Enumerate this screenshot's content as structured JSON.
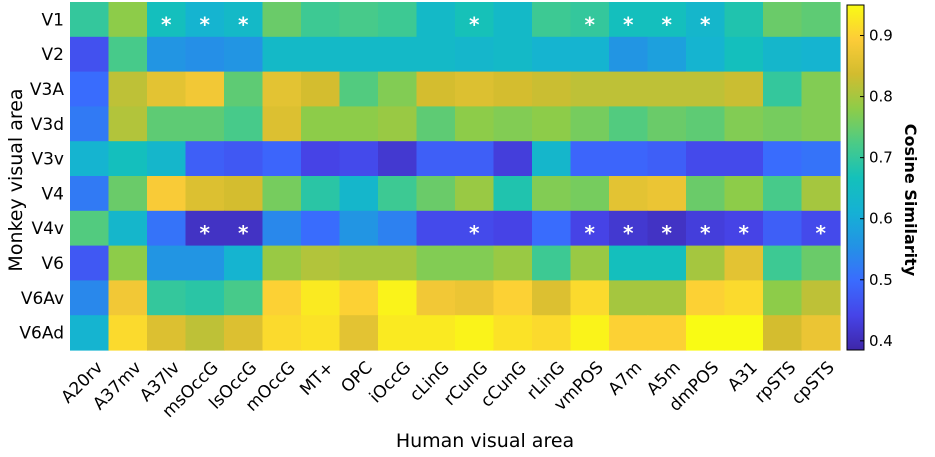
{
  "chart_data": {
    "type": "heatmap",
    "title": "",
    "xlabel": "Human visual area",
    "ylabel": "Monkey visual area",
    "colorbar_label": "Cosine Similarity",
    "colorbar_range": [
      0.385,
      0.95
    ],
    "colorbar_ticks": [
      "0.4",
      "0.5",
      "0.6",
      "0.7",
      "0.8",
      "0.9"
    ],
    "colorbar_tick_values": [
      0.4,
      0.5,
      0.6,
      0.7,
      0.8,
      0.9
    ],
    "x_categories": [
      "A20rv",
      "A37mv",
      "A37lv",
      "msOccG",
      "lsOccG",
      "mOccG",
      "MT+",
      "OPC",
      "iOccG",
      "cLinG",
      "rCunG",
      "cCunG",
      "rLinG",
      "vmPOS",
      "A7m",
      "A5m",
      "dmPOS",
      "A31",
      "rpSTS",
      "cpSTS"
    ],
    "y_categories": [
      "V1",
      "V2",
      "V3A",
      "V3d",
      "V3v",
      "V4",
      "V4v",
      "V6",
      "V6Av",
      "V6Ad"
    ],
    "values": [
      [
        0.7,
        0.78,
        0.66,
        0.62,
        0.64,
        0.75,
        0.71,
        0.72,
        0.71,
        0.64,
        0.67,
        0.64,
        0.71,
        0.7,
        0.66,
        0.66,
        0.63,
        0.68,
        0.75,
        0.74
      ],
      [
        0.46,
        0.72,
        0.56,
        0.55,
        0.56,
        0.64,
        0.64,
        0.64,
        0.64,
        0.64,
        0.63,
        0.64,
        0.62,
        0.62,
        0.56,
        0.58,
        0.62,
        0.66,
        0.63,
        0.62
      ],
      [
        0.5,
        0.82,
        0.86,
        0.88,
        0.74,
        0.86,
        0.84,
        0.73,
        0.77,
        0.84,
        0.85,
        0.84,
        0.83,
        0.82,
        0.82,
        0.82,
        0.82,
        0.83,
        0.7,
        0.77
      ],
      [
        0.52,
        0.81,
        0.74,
        0.74,
        0.72,
        0.85,
        0.78,
        0.78,
        0.79,
        0.74,
        0.78,
        0.77,
        0.78,
        0.76,
        0.73,
        0.75,
        0.74,
        0.77,
        0.76,
        0.77
      ],
      [
        0.62,
        0.66,
        0.63,
        0.48,
        0.47,
        0.49,
        0.44,
        0.45,
        0.42,
        0.48,
        0.48,
        0.43,
        0.63,
        0.49,
        0.49,
        0.48,
        0.45,
        0.45,
        0.5,
        0.51
      ],
      [
        0.52,
        0.75,
        0.89,
        0.85,
        0.84,
        0.76,
        0.69,
        0.63,
        0.71,
        0.75,
        0.79,
        0.68,
        0.77,
        0.76,
        0.86,
        0.87,
        0.75,
        0.78,
        0.72,
        0.8
      ],
      [
        0.73,
        0.63,
        0.51,
        0.41,
        0.41,
        0.54,
        0.5,
        0.56,
        0.53,
        0.45,
        0.45,
        0.44,
        0.5,
        0.44,
        0.42,
        0.41,
        0.43,
        0.44,
        0.48,
        0.45
      ],
      [
        0.47,
        0.78,
        0.56,
        0.56,
        0.62,
        0.79,
        0.81,
        0.8,
        0.8,
        0.77,
        0.77,
        0.79,
        0.71,
        0.79,
        0.66,
        0.66,
        0.8,
        0.86,
        0.71,
        0.75
      ],
      [
        0.54,
        0.88,
        0.7,
        0.69,
        0.72,
        0.9,
        0.93,
        0.9,
        0.94,
        0.88,
        0.87,
        0.9,
        0.85,
        0.91,
        0.8,
        0.8,
        0.9,
        0.91,
        0.78,
        0.82
      ],
      [
        0.62,
        0.91,
        0.85,
        0.82,
        0.85,
        0.91,
        0.92,
        0.86,
        0.93,
        0.93,
        0.94,
        0.92,
        0.91,
        0.94,
        0.9,
        0.9,
        0.95,
        0.95,
        0.84,
        0.87
      ]
    ],
    "significance_marker": "*",
    "significant_cells": [
      [
        "V1",
        "A37lv"
      ],
      [
        "V1",
        "msOccG"
      ],
      [
        "V1",
        "lsOccG"
      ],
      [
        "V1",
        "rCunG"
      ],
      [
        "V1",
        "vmPOS"
      ],
      [
        "V1",
        "A7m"
      ],
      [
        "V1",
        "A5m"
      ],
      [
        "V1",
        "dmPOS"
      ],
      [
        "V4v",
        "msOccG"
      ],
      [
        "V4v",
        "lsOccG"
      ],
      [
        "V4v",
        "rCunG"
      ],
      [
        "V4v",
        "vmPOS"
      ],
      [
        "V4v",
        "A7m"
      ],
      [
        "V4v",
        "A5m"
      ],
      [
        "V4v",
        "dmPOS"
      ],
      [
        "V4v",
        "A31"
      ],
      [
        "V4v",
        "cpSTS"
      ]
    ],
    "colormap": "parula",
    "grid": false
  }
}
